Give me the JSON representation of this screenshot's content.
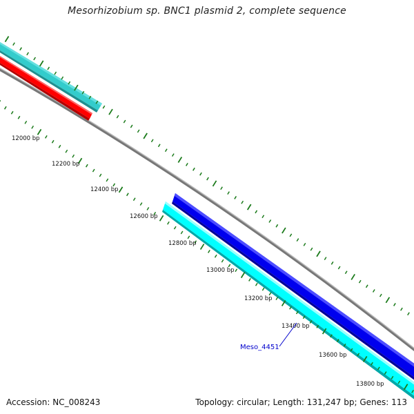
{
  "title": "Mesorhizobium sp. BNC1 plasmid 2, complete sequence",
  "footer": {
    "accession": "Accession: NC_008243",
    "summary": "Topology: circular; Length: 131,247 bp; Genes: 113"
  },
  "scale_labels": [
    "12000 bp",
    "12200 bp",
    "12400 bp",
    "12600 bp",
    "12800 bp",
    "13000 bp",
    "13200 bp",
    "13400 bp",
    "13600 bp",
    "13800 bp"
  ],
  "genes": [
    {
      "label": "Meso_4451",
      "color": "#0000ee",
      "labelColor": "#0000cc"
    }
  ],
  "colors": {
    "backbone": "#8a8a8a",
    "ticks": "#1a7a1a",
    "cyan_outer": "#33cccc",
    "red": "#ff0000",
    "blue": "#0000ee",
    "cyan_inner": "#00ffff"
  }
}
